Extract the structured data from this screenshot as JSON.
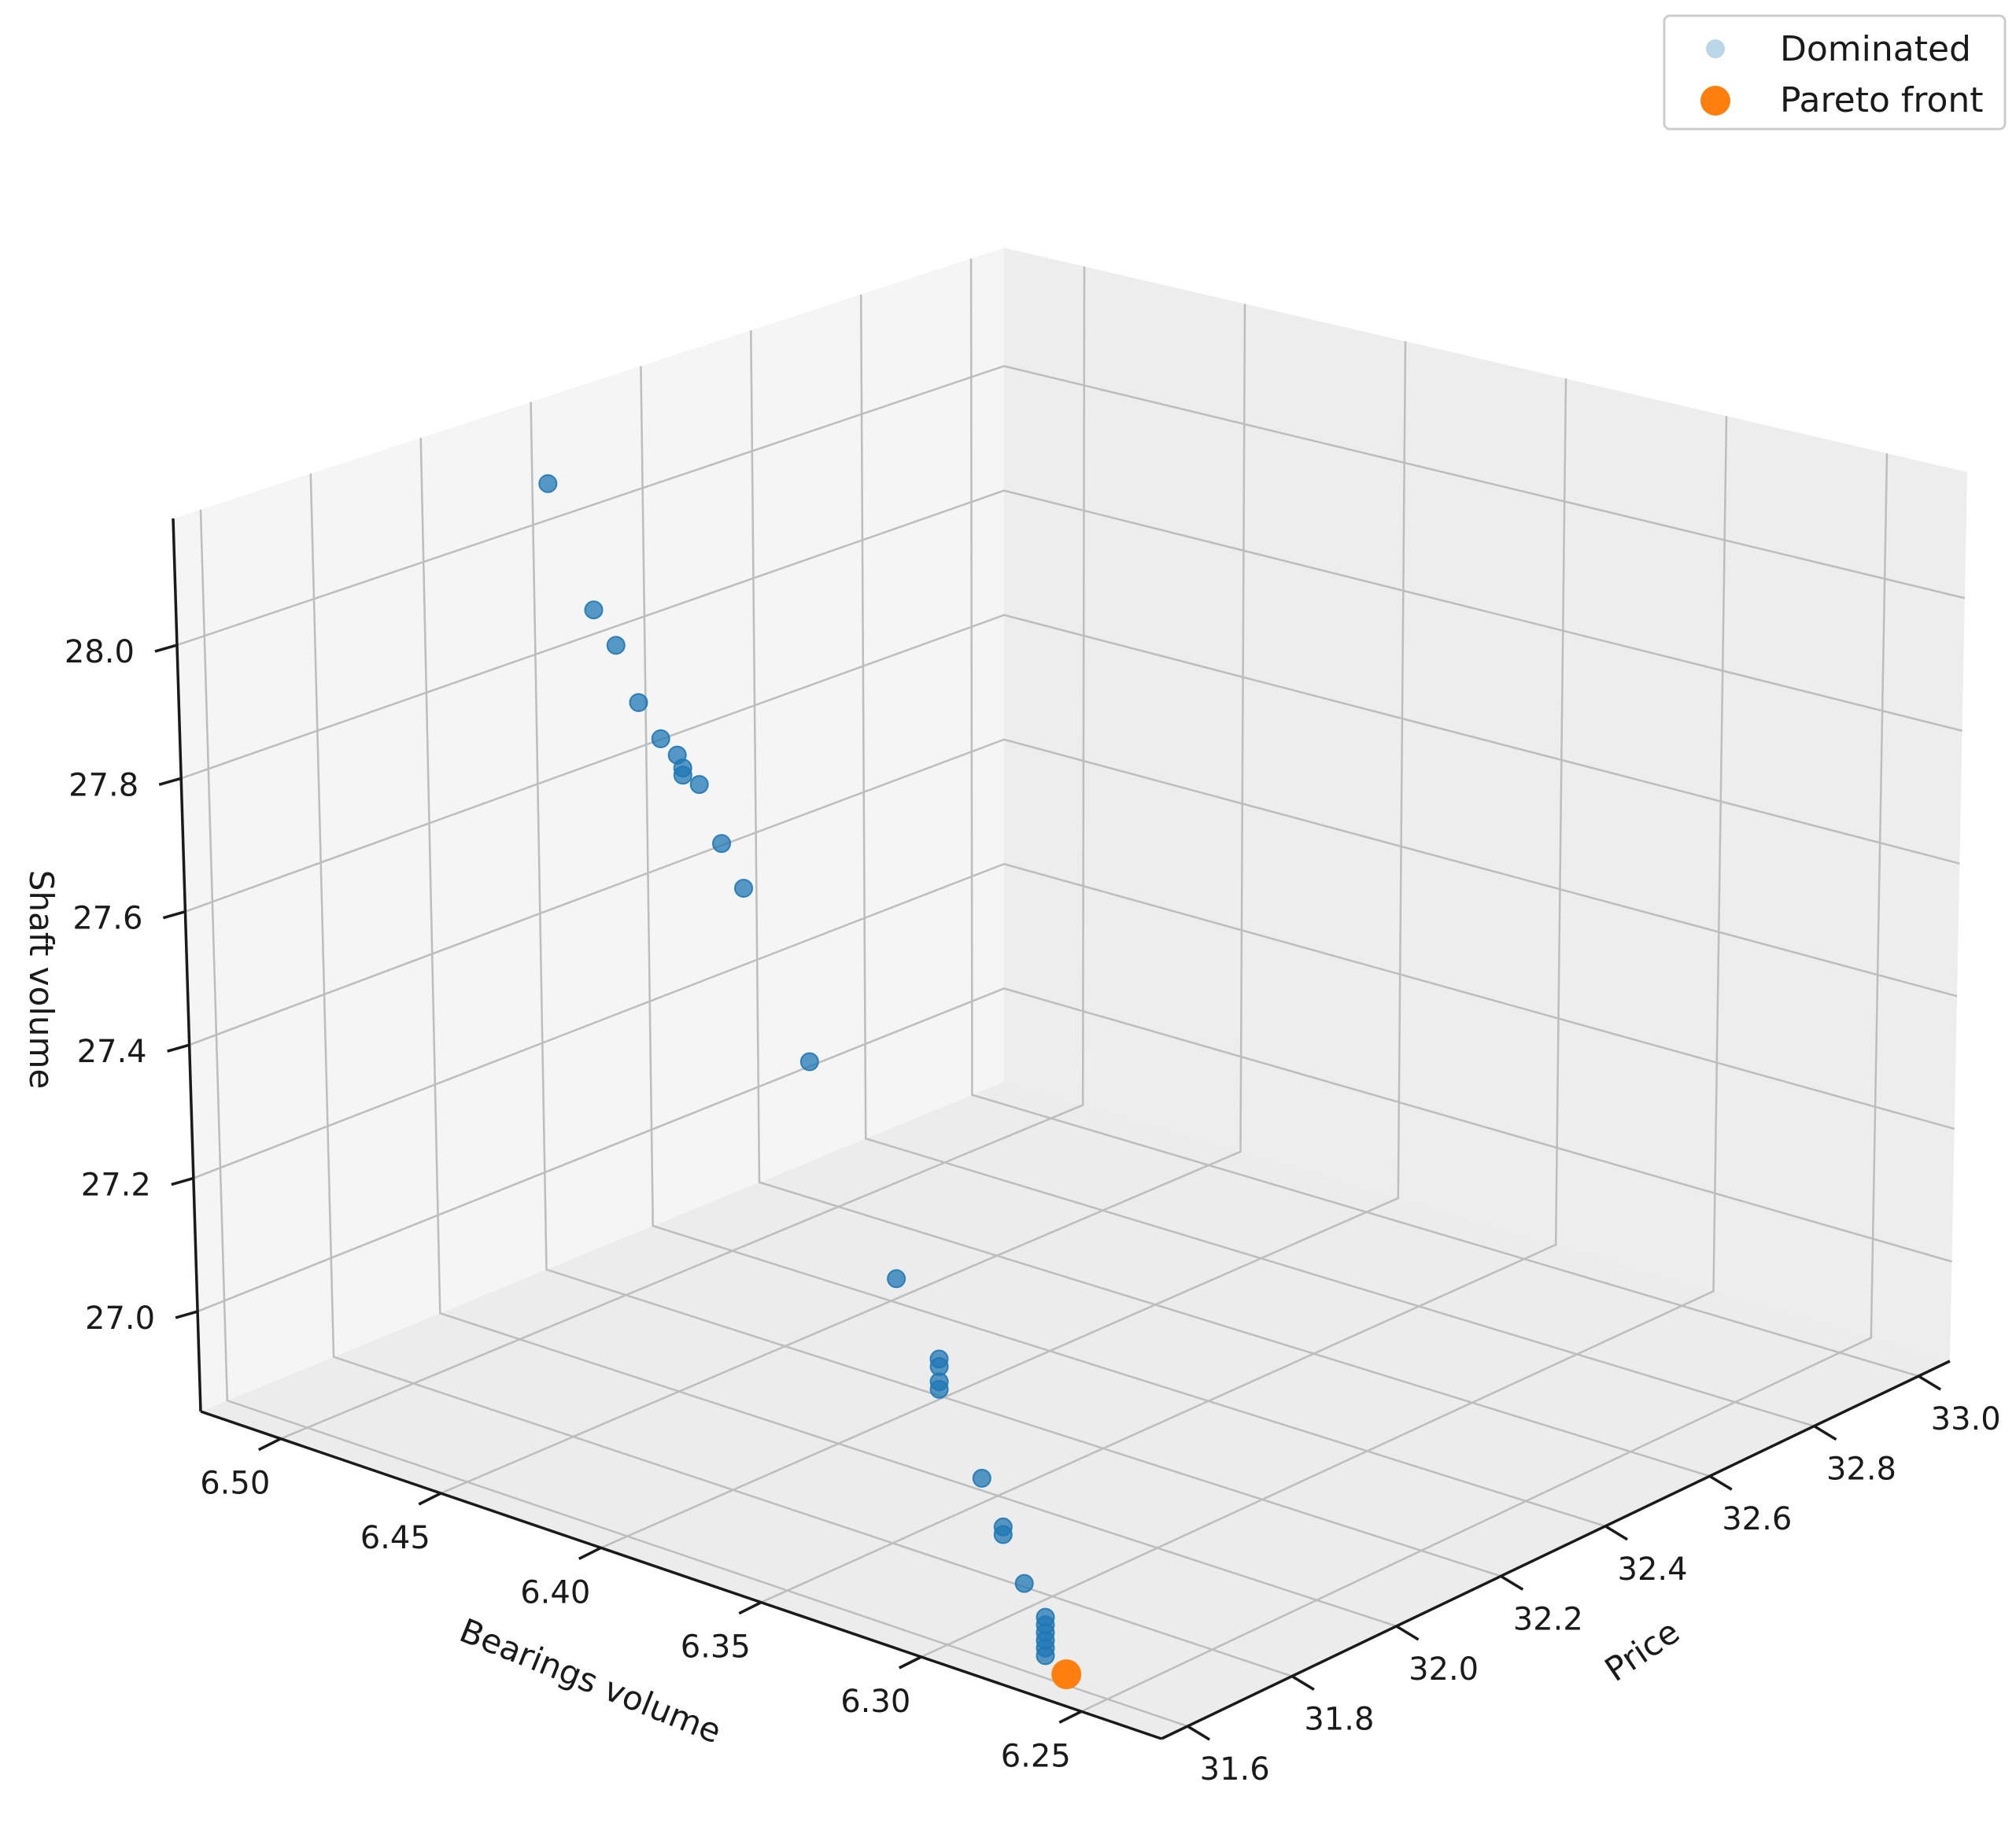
{
  "chart_data": {
    "type": "scatter",
    "projection": "3d",
    "grid": true,
    "legend_position": "top-right",
    "axes": {
      "x": {
        "label": "Price",
        "range": [
          31.6,
          33.0
        ],
        "ticks": [
          "31.6",
          "31.8",
          "32.0",
          "32.2",
          "32.4",
          "32.6",
          "32.8",
          "33.0"
        ]
      },
      "y": {
        "label": "Bearings volume",
        "range": [
          6.25,
          6.5
        ],
        "ticks": [
          "6.25",
          "6.30",
          "6.35",
          "6.40",
          "6.45",
          "6.50"
        ]
      },
      "z": {
        "label": "Shaft volume",
        "range": [
          27.0,
          28.0
        ],
        "ticks": [
          "27.0",
          "27.2",
          "27.4",
          "27.6",
          "27.8",
          "28.0"
        ]
      }
    },
    "series": [
      {
        "name": "Dominated",
        "color": "#1f77b4",
        "points": [
          {
            "x": 31.84,
            "y": 6.46,
            "z": 28.17
          },
          {
            "x": 31.86,
            "y": 6.45,
            "z": 27.99
          },
          {
            "x": 31.87,
            "y": 6.445,
            "z": 27.94
          },
          {
            "x": 31.88,
            "y": 6.44,
            "z": 27.86
          },
          {
            "x": 31.89,
            "y": 6.435,
            "z": 27.81
          },
          {
            "x": 31.89,
            "y": 6.43,
            "z": 27.79
          },
          {
            "x": 31.9,
            "y": 6.43,
            "z": 27.77
          },
          {
            "x": 31.9,
            "y": 6.43,
            "z": 27.76
          },
          {
            "x": 31.9,
            "y": 6.425,
            "z": 27.75
          },
          {
            "x": 31.91,
            "y": 6.42,
            "z": 27.67
          },
          {
            "x": 31.92,
            "y": 6.415,
            "z": 27.61
          },
          {
            "x": 31.95,
            "y": 6.4,
            "z": 27.38
          },
          {
            "x": 31.99,
            "y": 6.38,
            "z": 27.1
          },
          {
            "x": 32.01,
            "y": 6.37,
            "z": 27.0
          },
          {
            "x": 32.01,
            "y": 6.37,
            "z": 26.99
          },
          {
            "x": 32.01,
            "y": 6.37,
            "z": 26.97
          },
          {
            "x": 32.01,
            "y": 6.37,
            "z": 26.96
          },
          {
            "x": 32.03,
            "y": 6.36,
            "z": 26.85
          },
          {
            "x": 32.04,
            "y": 6.355,
            "z": 26.79
          },
          {
            "x": 32.04,
            "y": 6.355,
            "z": 26.78
          },
          {
            "x": 32.05,
            "y": 6.35,
            "z": 26.72
          },
          {
            "x": 32.06,
            "y": 6.345,
            "z": 26.68
          },
          {
            "x": 32.06,
            "y": 6.345,
            "z": 26.67
          },
          {
            "x": 32.06,
            "y": 6.345,
            "z": 26.66
          },
          {
            "x": 32.06,
            "y": 6.345,
            "z": 26.65
          },
          {
            "x": 32.06,
            "y": 6.345,
            "z": 26.64
          },
          {
            "x": 32.06,
            "y": 6.345,
            "z": 26.63
          }
        ]
      },
      {
        "name": "Pareto front",
        "color": "#ff7f0e",
        "points": [
          {
            "x": 32.07,
            "y": 6.34,
            "z": 26.61
          }
        ]
      }
    ]
  }
}
